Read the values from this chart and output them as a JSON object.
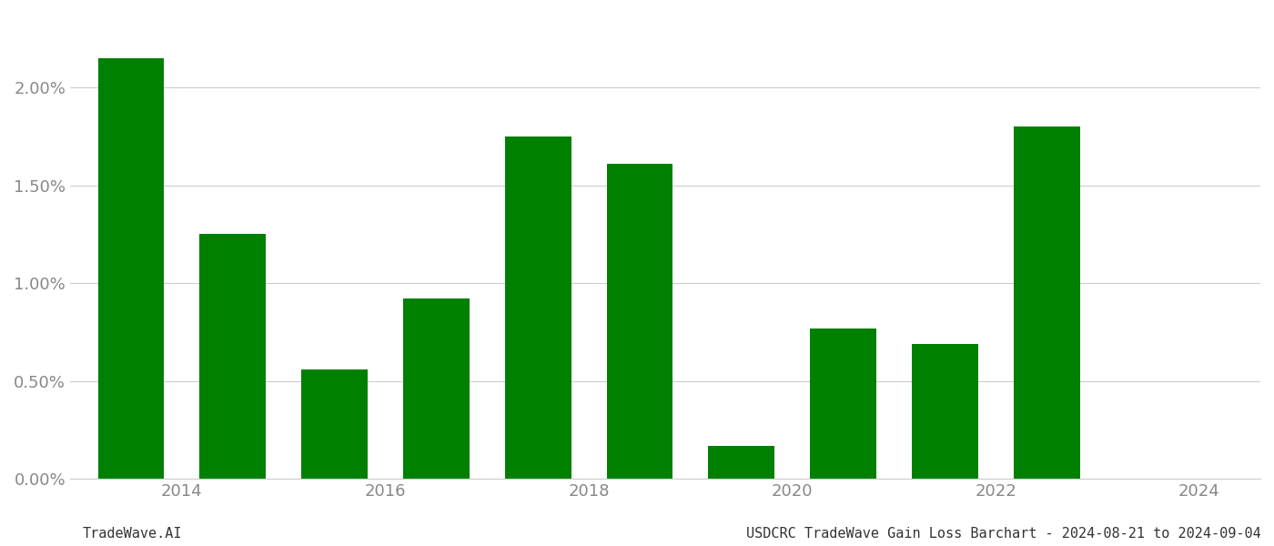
{
  "years": [
    2014,
    2015,
    2016,
    2017,
    2018,
    2019,
    2020,
    2021,
    2022,
    2023,
    2024
  ],
  "values": [
    0.0215,
    0.0125,
    0.0056,
    0.0092,
    0.0175,
    0.0161,
    0.0017,
    0.0077,
    0.0069,
    0.018,
    0.0
  ],
  "bar_color": "#008000",
  "ylim": [
    0,
    0.0235
  ],
  "yticks": [
    0.0,
    0.005,
    0.01,
    0.015,
    0.02
  ],
  "ytick_labels": [
    "0.00%",
    "0.50%",
    "1.00%",
    "1.50%",
    "2.00%"
  ],
  "xtick_labels": [
    "2014",
    "2016",
    "2018",
    "2020",
    "2022",
    "2024"
  ],
  "footer_left": "TradeWave.AI",
  "footer_right": "USDCRC TradeWave Gain Loss Barchart - 2024-08-21 to 2024-09-04",
  "background_color": "#ffffff",
  "grid_color": "#cccccc",
  "text_color": "#888888",
  "footer_color": "#333333",
  "bar_width": 0.65
}
